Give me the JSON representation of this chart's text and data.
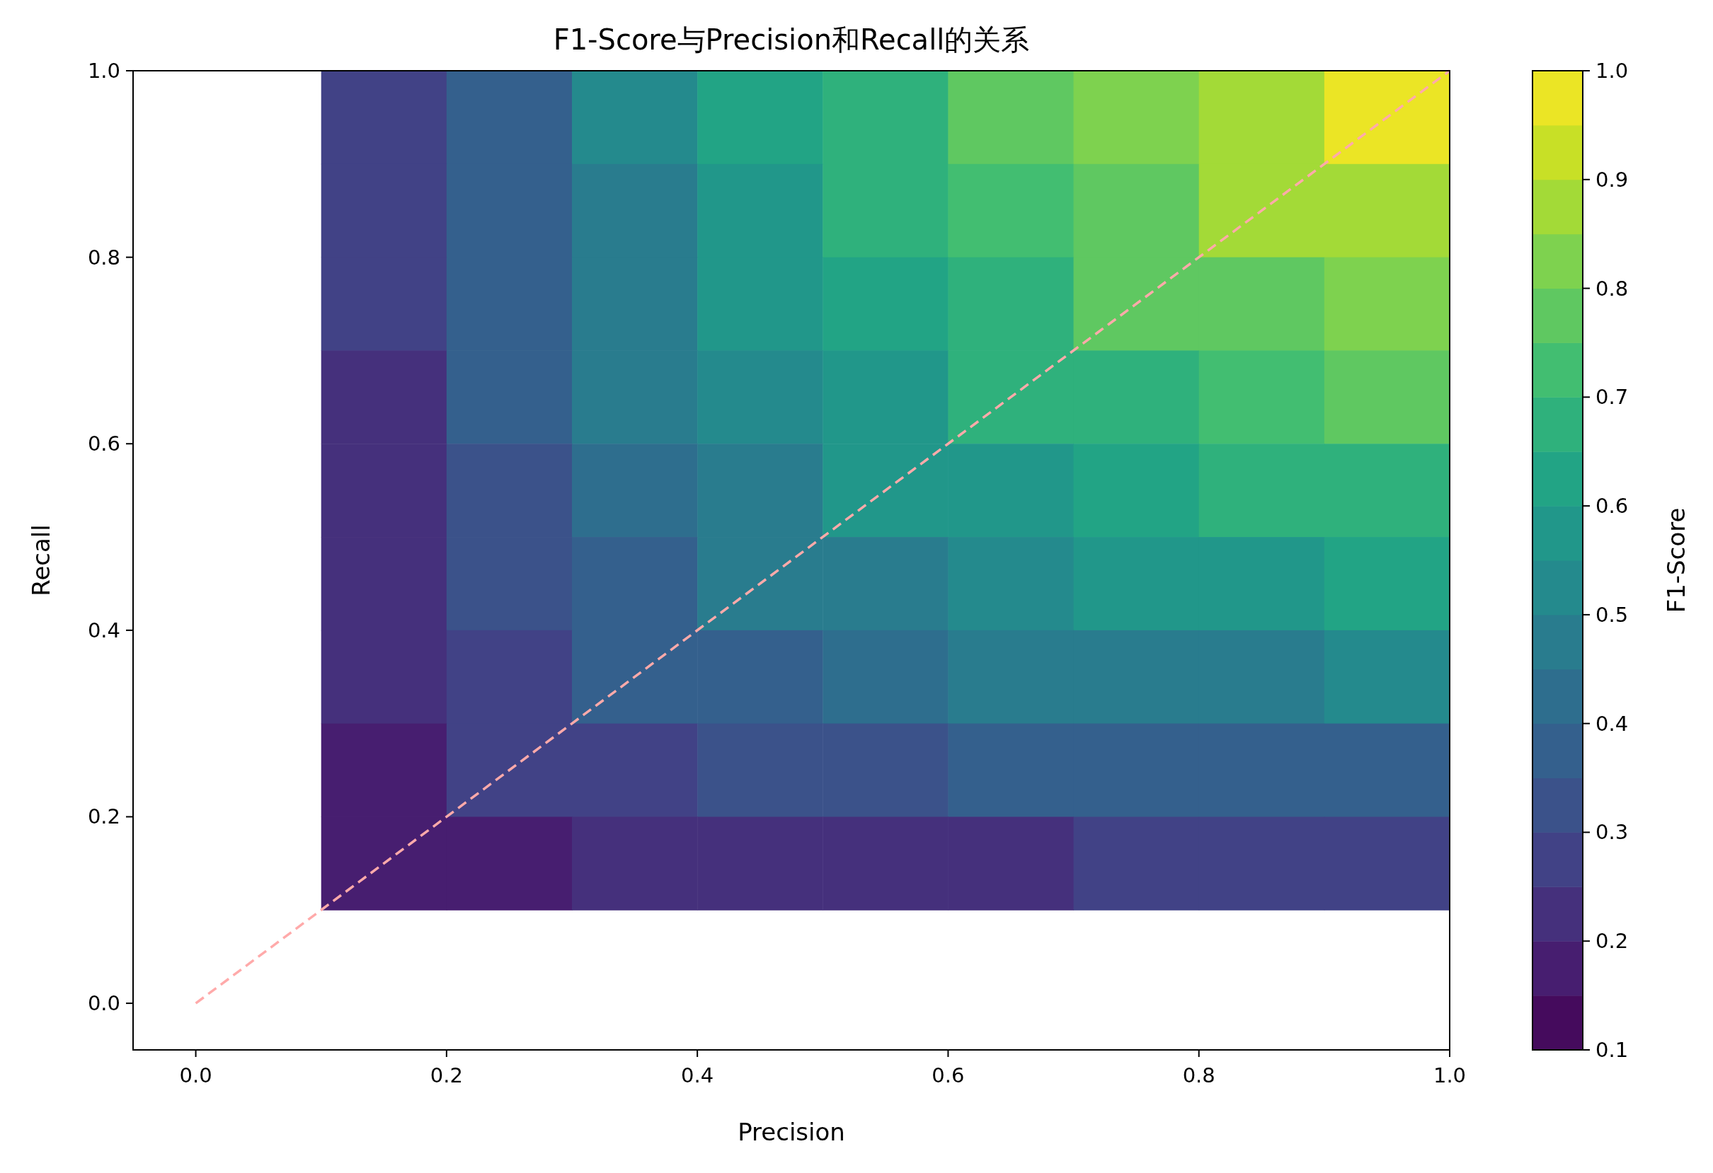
{
  "chart_data": {
    "type": "heatmap",
    "title": "F1-Score与Precision和Recall的关系",
    "xlabel": "Precision",
    "ylabel": "Recall",
    "clabel": "F1-Score",
    "x": [
      0.15,
      0.25,
      0.35,
      0.45,
      0.55,
      0.65,
      0.75,
      0.85,
      0.95
    ],
    "y": [
      0.95,
      0.85,
      0.75,
      0.65,
      0.55,
      0.45,
      0.35,
      0.25,
      0.15
    ],
    "cells": [
      [
        0.275,
        0.375,
        0.525,
        0.625,
        0.675,
        0.775,
        0.825,
        0.875,
        0.975
      ],
      [
        0.275,
        0.375,
        0.475,
        0.575,
        0.675,
        0.725,
        0.775,
        0.875,
        0.875
      ],
      [
        0.275,
        0.375,
        0.475,
        0.575,
        0.625,
        0.675,
        0.775,
        0.775,
        0.825
      ],
      [
        0.225,
        0.375,
        0.475,
        0.525,
        0.575,
        0.675,
        0.675,
        0.725,
        0.775
      ],
      [
        0.225,
        0.325,
        0.425,
        0.475,
        0.575,
        0.575,
        0.625,
        0.675,
        0.675
      ],
      [
        0.225,
        0.325,
        0.375,
        0.475,
        0.475,
        0.525,
        0.575,
        0.575,
        0.625
      ],
      [
        0.225,
        0.275,
        0.375,
        0.375,
        0.425,
        0.475,
        0.475,
        0.475,
        0.525
      ],
      [
        0.175,
        0.275,
        0.275,
        0.325,
        0.325,
        0.375,
        0.375,
        0.375,
        0.375
      ],
      [
        0.175,
        0.175,
        0.225,
        0.225,
        0.225,
        0.225,
        0.275,
        0.275,
        0.275
      ]
    ],
    "clim": [
      0.1,
      1.0
    ],
    "cticks": [
      0.1,
      0.2,
      0.3,
      0.4,
      0.5,
      0.6,
      0.7,
      0.8,
      0.9,
      {
        "value": 1,
        "label": "1.0"
      }
    ],
    "xlim": [
      -0.05,
      1.0
    ],
    "ylim": [
      -0.05,
      1.0
    ],
    "xticks": [
      {
        "value": 0,
        "label": "0.0"
      },
      0.2,
      0.4,
      0.6,
      0.8,
      {
        "value": 1,
        "label": "1.0"
      }
    ],
    "yticks": [
      {
        "value": 0,
        "label": "0.0"
      },
      0.2,
      0.4,
      0.6,
      0.8,
      {
        "value": 1,
        "label": "1.0"
      }
    ],
    "series": [
      {
        "type": "line",
        "x": [
          0,
          1
        ],
        "values": [
          0,
          1
        ],
        "color": "#ffaaaa",
        "line_style": "dashed"
      }
    ]
  }
}
